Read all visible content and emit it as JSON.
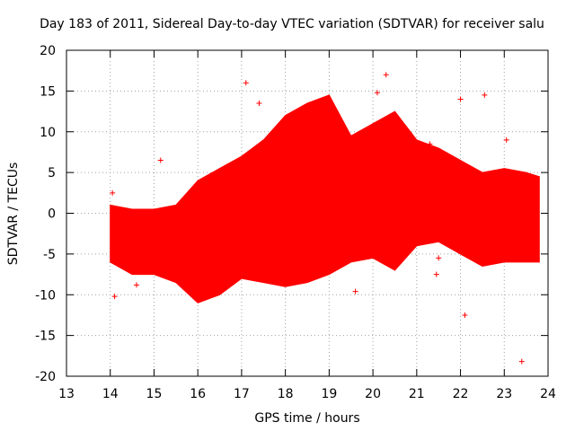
{
  "chart_data": {
    "type": "scatter",
    "title": "Day 183 of 2011, Sidereal Day-to-day VTEC variation (SDTVAR) for receiver salu",
    "xlabel": "GPS time / hours",
    "ylabel": "SDTVAR / TECUs",
    "xlim": [
      13,
      24
    ],
    "ylim": [
      -20,
      20
    ],
    "grid": true,
    "x_ticks": [
      "13",
      "14",
      "15",
      "16",
      "17",
      "18",
      "19",
      "20",
      "21",
      "22",
      "23",
      "24"
    ],
    "y_ticks": [
      "20",
      "15",
      "10",
      "5",
      "0",
      "-5",
      "-10",
      "-15",
      "-20"
    ],
    "series": [
      {
        "name": "SDTVAR",
        "color": "#ff0000",
        "marker": "plus",
        "band_x": [
          14.0,
          14.5,
          15.0,
          15.5,
          16.0,
          16.5,
          17.0,
          17.5,
          18.0,
          18.5,
          19.0,
          19.5,
          20.0,
          20.5,
          21.0,
          21.5,
          22.0,
          22.5,
          23.0,
          23.5,
          23.8
        ],
        "band_upper": [
          1.0,
          0.5,
          0.5,
          1.0,
          4.0,
          5.5,
          7.0,
          9.0,
          12.0,
          13.5,
          14.5,
          9.5,
          11.0,
          12.5,
          9.0,
          8.0,
          6.5,
          5.0,
          5.5,
          5.0,
          4.5
        ],
        "band_lower": [
          -6.0,
          -7.5,
          -7.5,
          -8.5,
          -11.0,
          -10.0,
          -8.0,
          -8.5,
          -9.0,
          -8.5,
          -7.5,
          -6.0,
          -5.5,
          -7.0,
          -4.0,
          -3.5,
          -5.0,
          -6.5,
          -6.0,
          -6.0,
          -6.0
        ],
        "outliers": [
          {
            "x": 14.05,
            "y": 2.5
          },
          {
            "x": 14.1,
            "y": -10.2
          },
          {
            "x": 14.6,
            "y": -8.8
          },
          {
            "x": 15.15,
            "y": 6.5
          },
          {
            "x": 17.1,
            "y": 16.0
          },
          {
            "x": 17.4,
            "y": 13.5
          },
          {
            "x": 19.6,
            "y": -9.6
          },
          {
            "x": 20.1,
            "y": 14.8
          },
          {
            "x": 20.3,
            "y": 17.0
          },
          {
            "x": 21.3,
            "y": 8.5
          },
          {
            "x": 21.45,
            "y": -7.5
          },
          {
            "x": 21.5,
            "y": -5.5
          },
          {
            "x": 22.0,
            "y": 14.0
          },
          {
            "x": 22.1,
            "y": -12.5
          },
          {
            "x": 22.55,
            "y": 14.5
          },
          {
            "x": 23.05,
            "y": 9.0
          },
          {
            "x": 23.4,
            "y": -18.2
          }
        ]
      }
    ]
  }
}
